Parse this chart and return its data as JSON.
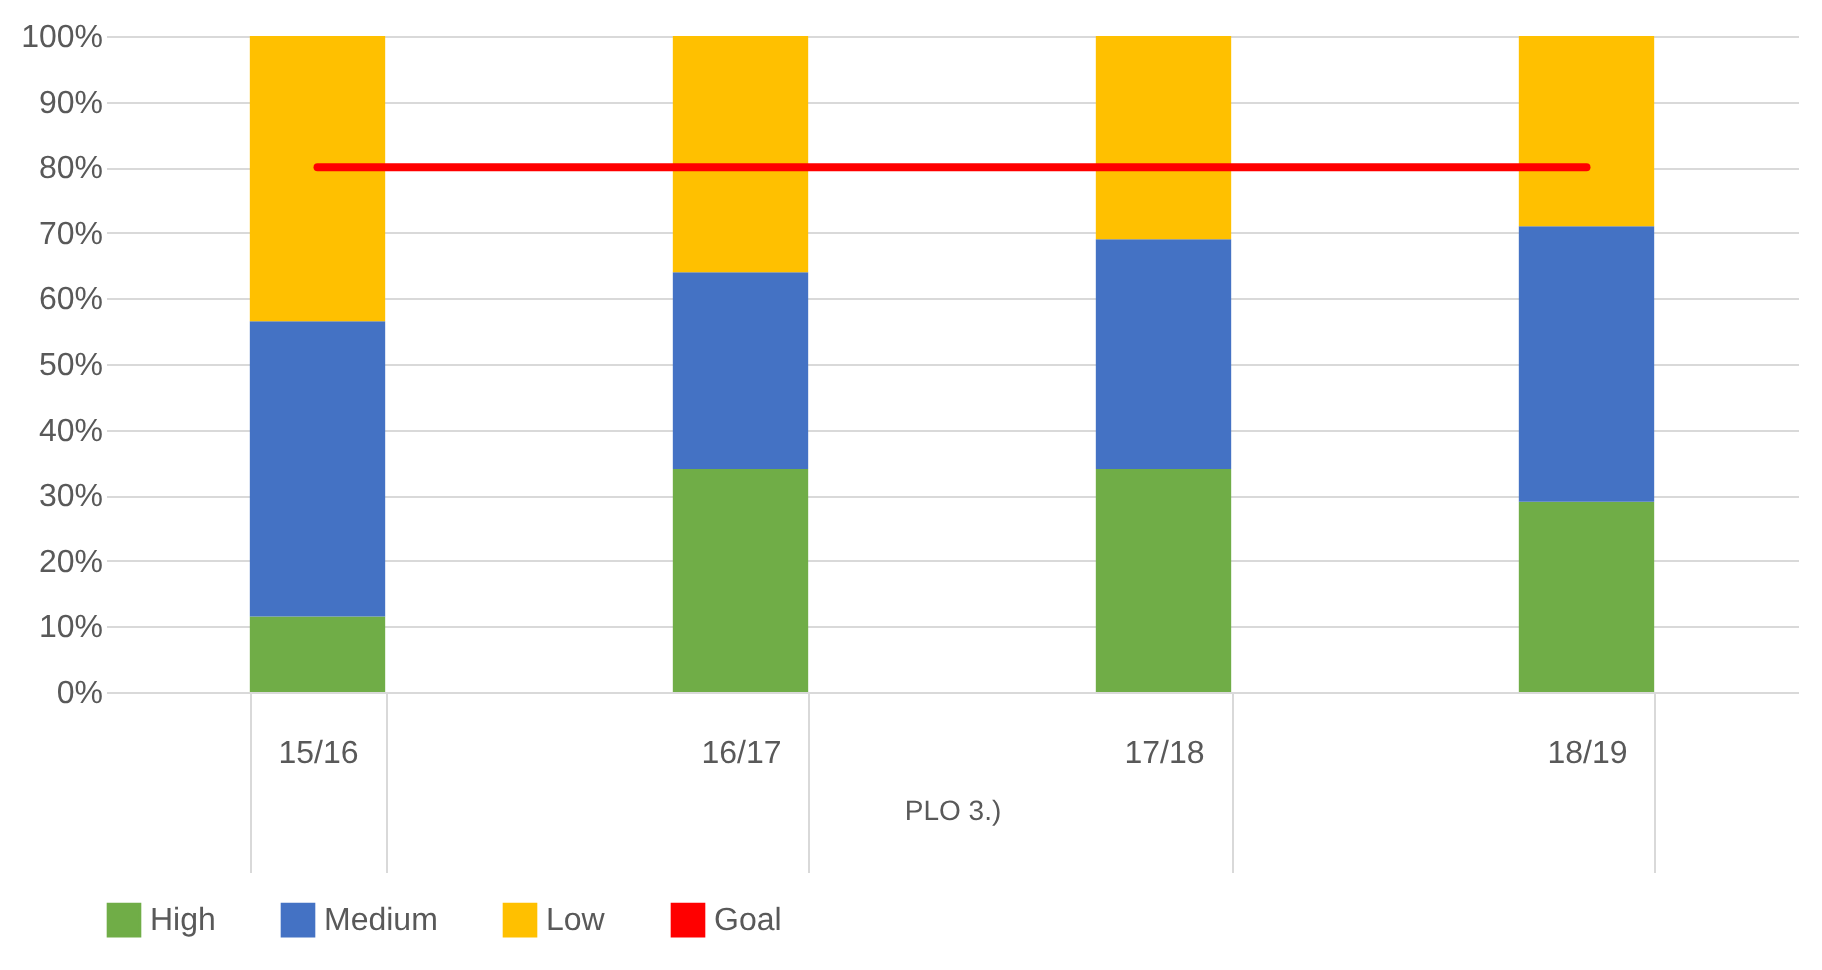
{
  "chart_data": {
    "type": "bar",
    "stacked": true,
    "xlabel": "PLO 3.)",
    "categories": [
      "15/16",
      "16/17",
      "17/18",
      "18/19"
    ],
    "series": [
      {
        "name": "High",
        "color": "#70ad47",
        "values": [
          11.5,
          34,
          34,
          29
        ]
      },
      {
        "name": "Medium",
        "color": "#4472c4",
        "values": [
          45,
          30,
          35,
          42
        ]
      },
      {
        "name": "Low",
        "color": "#ffc000",
        "values": [
          43.5,
          36,
          31,
          29
        ]
      },
      {
        "name": "Goal",
        "type": "line",
        "color": "#ff0000",
        "values": [
          80,
          80,
          80,
          80
        ]
      }
    ],
    "ylim": [
      0,
      100
    ],
    "yticks": [
      {
        "value": 0,
        "label": "0%"
      },
      {
        "value": 10,
        "label": "10%"
      },
      {
        "value": 20,
        "label": "20%"
      },
      {
        "value": 30,
        "label": "30%"
      },
      {
        "value": 40,
        "label": "40%"
      },
      {
        "value": 50,
        "label": "50%"
      },
      {
        "value": 60,
        "label": "60%"
      },
      {
        "value": 70,
        "label": "70%"
      },
      {
        "value": 80,
        "label": "80%"
      },
      {
        "value": 90,
        "label": "90%"
      },
      {
        "value": 100,
        "label": "100%"
      }
    ],
    "grid": "y",
    "legend": "bottom"
  }
}
